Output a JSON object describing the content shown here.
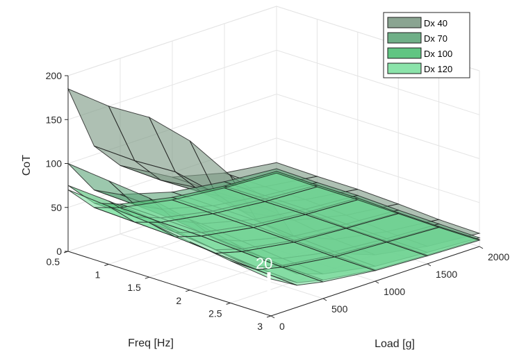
{
  "chart_data": {
    "type": "surface",
    "xlabel": "Load [g]",
    "ylabel": "Freq [Hz]",
    "zlabel": "CoT",
    "x_ticks": [
      "0",
      "500",
      "1000",
      "1500",
      "2000"
    ],
    "y_ticks": [
      "0.5",
      "1",
      "1.5",
      "2",
      "2.5",
      "3"
    ],
    "z_ticks": [
      "0",
      "50",
      "100",
      "150",
      "200"
    ],
    "xlim": [
      0,
      2000
    ],
    "ylim": [
      0.5,
      3
    ],
    "zlim": [
      0,
      200
    ],
    "grid": true,
    "legend_position": "top-right",
    "x": [
      0,
      250,
      500,
      1000,
      1500,
      2000
    ],
    "y": [
      0.5,
      1,
      1.5,
      2,
      2.5,
      3
    ],
    "series": [
      {
        "name": "Dx 40",
        "color": "#7d9a85",
        "z": [
          [
            185,
            110,
            78,
            45,
            30,
            22
          ],
          [
            180,
            108,
            76,
            44,
            29,
            21
          ],
          [
            182,
            110,
            77,
            44,
            29,
            21
          ],
          [
            170,
            100,
            70,
            40,
            26,
            19
          ],
          [
            145,
            85,
            58,
            33,
            22,
            16
          ],
          [
            130,
            75,
            52,
            30,
            20,
            15
          ]
        ]
      },
      {
        "name": "Dx 70",
        "color": "#5fa67a",
        "z": [
          [
            100,
            60,
            45,
            28,
            20,
            15
          ],
          [
            95,
            58,
            43,
            27,
            19,
            14
          ],
          [
            90,
            55,
            41,
            26,
            18,
            14
          ],
          [
            80,
            48,
            36,
            22,
            16,
            12
          ],
          [
            70,
            42,
            31,
            19,
            14,
            11
          ],
          [
            62,
            38,
            28,
            17,
            13,
            10
          ]
        ]
      },
      {
        "name": "Dx 100",
        "color": "#4fbf74",
        "z": [
          [
            75,
            45,
            34,
            22,
            15,
            12
          ],
          [
            72,
            44,
            33,
            21,
            15,
            11
          ],
          [
            68,
            41,
            31,
            20,
            14,
            11
          ],
          [
            60,
            36,
            27,
            17,
            12,
            9
          ],
          [
            52,
            31,
            23,
            15,
            11,
            8
          ],
          [
            46,
            28,
            21,
            13,
            10,
            8
          ]
        ]
      },
      {
        "name": "Dx 120",
        "color": "#7ee0a1",
        "z": [
          [
            70,
            40,
            30,
            19,
            13,
            10
          ],
          [
            66,
            38,
            28,
            18,
            12,
            9
          ],
          [
            62,
            36,
            27,
            17,
            12,
            9
          ],
          [
            55,
            32,
            24,
            15,
            11,
            8
          ],
          [
            48,
            28,
            21,
            13,
            10,
            7
          ],
          [
            42,
            25,
            19,
            12,
            9,
            7
          ]
        ]
      }
    ]
  },
  "annotation": {
    "text": "20",
    "color": "#ffffff"
  }
}
